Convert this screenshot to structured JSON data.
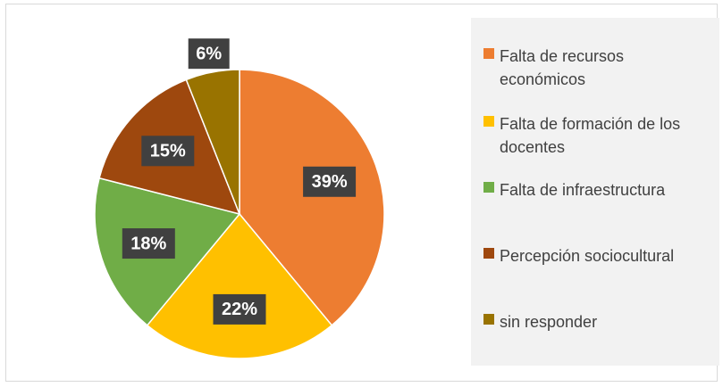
{
  "chart_data": {
    "type": "pie",
    "categories": [
      "Falta de recursos económicos",
      "Falta de formación de los docentes",
      "Falta de infraestructura",
      "Percepción sociocultural",
      "sin responder"
    ],
    "values": [
      39,
      22,
      18,
      15,
      6
    ],
    "value_labels": [
      "39%",
      "22%",
      "18%",
      "15%",
      "6%"
    ],
    "colors": [
      "#ED7D31",
      "#FFC000",
      "#70AD47",
      "#9E480E",
      "#997300"
    ],
    "legend": "right"
  }
}
